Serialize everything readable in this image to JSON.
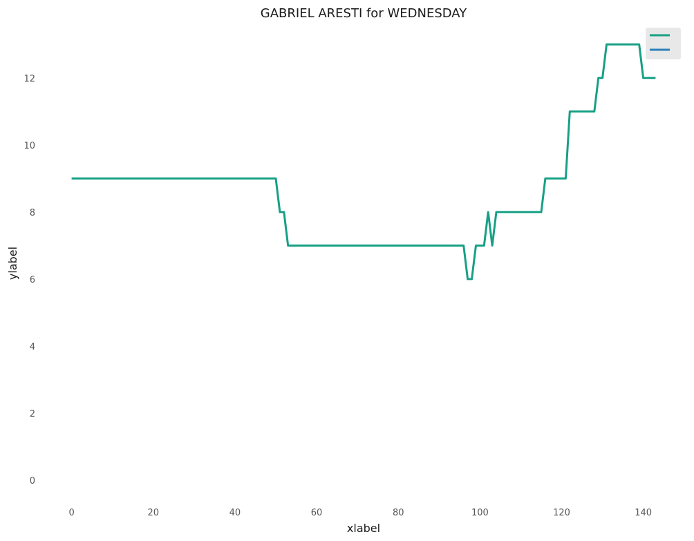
{
  "chart_data": {
    "type": "line",
    "title": "GABRIEL ARESTI for WEDNESDAY",
    "xlabel": "xlabel",
    "ylabel": "ylabel",
    "xlim": [
      -4,
      147
    ],
    "ylim": [
      -0.7,
      13.5
    ],
    "xticks": [
      0,
      20,
      40,
      60,
      80,
      100,
      120,
      140
    ],
    "yticks": [
      0,
      2,
      4,
      6,
      8,
      10,
      12
    ],
    "grid": false,
    "legend_position": "top-right",
    "series": [
      {
        "color": "#17a085",
        "points": [
          [
            0,
            9
          ],
          [
            50,
            9
          ],
          [
            51,
            8
          ],
          [
            52,
            8
          ],
          [
            53,
            7
          ],
          [
            96,
            7
          ],
          [
            97,
            6
          ],
          [
            98,
            6
          ],
          [
            99,
            7
          ],
          [
            101,
            7
          ],
          [
            102,
            8
          ],
          [
            103,
            7
          ],
          [
            104,
            8
          ],
          [
            115,
            8
          ],
          [
            116,
            9
          ],
          [
            121,
            9
          ],
          [
            122,
            11
          ],
          [
            128,
            11
          ],
          [
            129,
            12
          ],
          [
            130,
            12
          ],
          [
            131,
            13
          ],
          [
            139,
            13
          ],
          [
            140,
            12
          ],
          [
            143,
            12
          ]
        ]
      },
      {
        "color": "#2c7fb8",
        "points": []
      }
    ]
  }
}
